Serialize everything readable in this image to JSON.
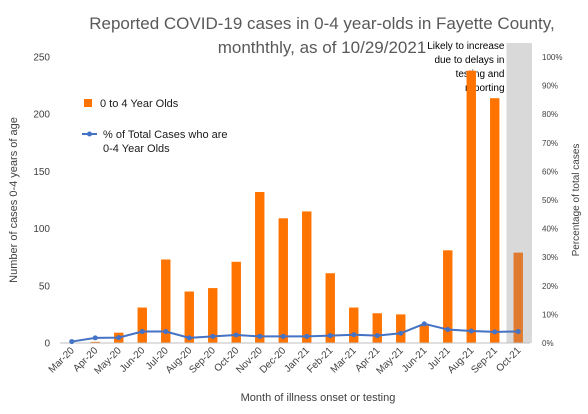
{
  "chart_data": {
    "type": "bar",
    "title_line1": "Reported COVID-19 cases in 0-4 year-olds in Fayette County,",
    "title_line2": "monththly, as of 10/29/2021",
    "xlabel": "Month of illness onset or testing",
    "ylabel": "Number of cases 0-4 years of age",
    "y2label": "Percentage of total cases",
    "categories": [
      "Mar-20",
      "Apr-20",
      "May-20",
      "Jun-20",
      "Jul-20",
      "Aug-20",
      "Sep-20",
      "Oct-20",
      "Nov-20",
      "Dec-20",
      "Jan-21",
      "Feb-21",
      "Mar-21",
      "Apr-21",
      "May-21",
      "Jun-21",
      "Jul-21",
      "Aug-21",
      "Sep-21",
      "Oct-21"
    ],
    "ylim": [
      0,
      250
    ],
    "yticks": [
      0,
      50,
      100,
      150,
      200,
      250
    ],
    "y2lim": [
      0,
      100
    ],
    "y2ticks": [
      "0%",
      "10%",
      "20%",
      "30%",
      "40%",
      "50%",
      "60%",
      "70%",
      "80%",
      "90%",
      "100%"
    ],
    "series": [
      {
        "name": "0 to 4 Year Olds",
        "kind": "bar",
        "color": "#ff7300",
        "values": [
          0,
          1,
          9,
          31,
          73,
          45,
          48,
          71,
          132,
          109,
          115,
          61,
          31,
          26,
          25,
          16,
          81,
          238,
          214,
          79
        ]
      },
      {
        "name": "% of Total Cases who are 0-4 Year Olds",
        "kind": "line",
        "axis": "right",
        "color": "#4472c4",
        "values": [
          0.5,
          1.8,
          1.9,
          4.0,
          4.0,
          1.8,
          2.3,
          2.8,
          2.3,
          2.3,
          2.3,
          2.6,
          2.9,
          2.6,
          3.4,
          6.7,
          4.7,
          4.2,
          3.9,
          4.0
        ]
      }
    ],
    "legend_line_label_1": "% of Total Cases who are",
    "legend_line_label_2": "0-4 Year Olds",
    "annotation": [
      "Likely to increase",
      "due to delays in",
      "testing and",
      "reporting"
    ],
    "shaded_category": "Oct-21",
    "shade_color": "#d9d9d9",
    "grid": false,
    "legend_position": "top-left"
  }
}
